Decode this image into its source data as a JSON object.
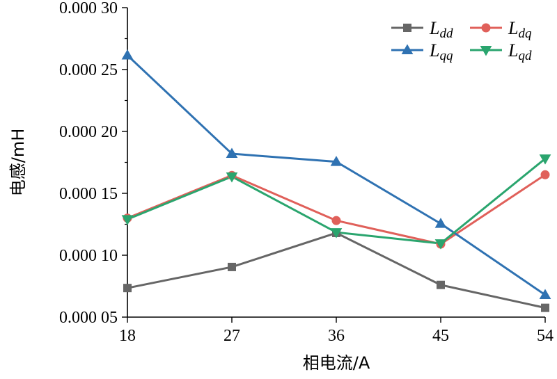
{
  "chart_data": {
    "type": "line",
    "xlabel": "相电流/A",
    "ylabel": "电感/mH",
    "x": [
      18,
      27,
      36,
      45,
      54
    ],
    "xlim": [
      18,
      54
    ],
    "ylim": [
      5e-05,
      0.0003
    ],
    "y_ticks": [
      "0.000 05",
      "0.000 10",
      "0.000 15",
      "0.000 20",
      "0.000 25",
      "0.000 30"
    ],
    "x_ticks": [
      "18",
      "27",
      "36",
      "45",
      "54"
    ],
    "grid": false,
    "legend_position": "top-right",
    "series": [
      {
        "name": "L_dd",
        "label_base": "L",
        "label_sub": "dd",
        "color": "#666666",
        "marker": "square",
        "values": [
          7.35e-05,
          9.05e-05,
          0.000118,
          7.6e-05,
          5.75e-05
        ]
      },
      {
        "name": "L_dq",
        "label_base": "L",
        "label_sub": "dq",
        "color": "#e0605a",
        "marker": "circle",
        "values": [
          0.00013,
          0.0001645,
          0.000128,
          0.000109,
          0.000165
        ]
      },
      {
        "name": "L_qq",
        "label_base": "L",
        "label_sub": "qq",
        "color": "#2f72b2",
        "marker": "triangle-up",
        "values": [
          0.0002615,
          0.000182,
          0.0001755,
          0.0001255,
          6.8e-05
        ]
      },
      {
        "name": "L_qd",
        "label_base": "L",
        "label_sub": "qd",
        "color": "#2aa56e",
        "marker": "triangle-down",
        "values": [
          0.000129,
          0.0001635,
          0.0001185,
          0.0001095,
          0.000178
        ]
      }
    ]
  }
}
